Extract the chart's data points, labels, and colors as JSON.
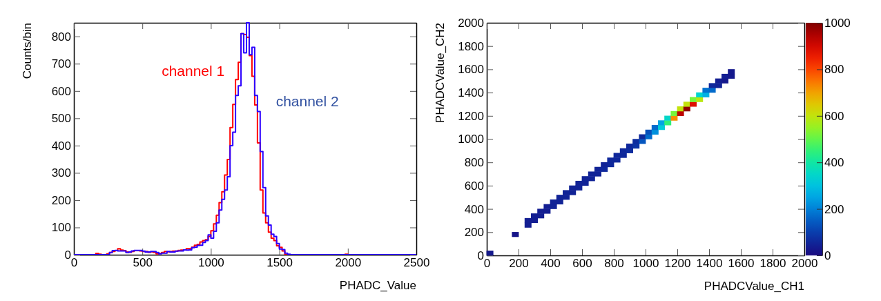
{
  "chart_data": [
    {
      "type": "histogram",
      "xlabel": "PHADC_Value",
      "ylabel": "Counts/bin",
      "legend": false,
      "bins": [
        0,
        20,
        40,
        60,
        80,
        100,
        120,
        140,
        160,
        180,
        200,
        220,
        240,
        260,
        280,
        300,
        320,
        340,
        360,
        380,
        400,
        420,
        440,
        460,
        480,
        500,
        520,
        540,
        560,
        580,
        600,
        620,
        640,
        660,
        680,
        700,
        720,
        740,
        760,
        780,
        800,
        820,
        840,
        860,
        880,
        900,
        920,
        940,
        960,
        980,
        1000,
        1020,
        1040,
        1060,
        1080,
        1100,
        1120,
        1140,
        1160,
        1180,
        1200,
        1220,
        1240,
        1260,
        1280,
        1300,
        1320,
        1340,
        1360,
        1380,
        1400,
        1420,
        1440,
        1460,
        1480,
        1500,
        1520,
        1540,
        1560,
        1580,
        1600,
        1620,
        1640,
        1660,
        1680,
        1700,
        1720,
        1740,
        1760,
        1780,
        1800,
        1820,
        1840,
        1860,
        1880,
        1900,
        1920,
        1940,
        1960,
        1980,
        2000,
        2020,
        2040,
        2060,
        2080,
        2100,
        2120,
        2140,
        2160,
        2180,
        2200,
        2220,
        2240,
        2260,
        2280,
        2300,
        2320,
        2340,
        2360,
        2380,
        2400,
        2420,
        2440,
        2460,
        2480,
        2500
      ],
      "series": [
        {
          "name": "channel 1",
          "color": "#ff0000",
          "values": [
            0,
            0,
            0,
            0,
            0,
            0,
            0,
            0,
            5,
            2,
            0,
            0,
            3,
            8,
            12,
            15,
            22,
            17,
            15,
            10,
            9,
            12,
            15,
            15,
            14,
            12,
            12,
            9,
            11,
            9,
            3,
            5,
            8,
            12,
            11,
            12,
            13,
            13,
            16,
            17,
            18,
            22,
            22,
            28,
            35,
            38,
            47,
            52,
            55,
            67,
            88,
            113,
            145,
            191,
            231,
            292,
            349,
            466,
            551,
            642,
            705,
            810,
            807,
            797,
            730,
            654,
            549,
            410,
            237,
            153,
            117,
            83,
            61,
            52,
            33,
            27,
            14,
            0,
            0,
            0,
            0,
            0,
            0,
            0,
            0,
            0,
            0,
            0,
            0,
            0,
            0,
            0,
            0,
            0,
            0,
            0,
            0,
            0,
            0,
            2,
            0,
            0,
            0,
            0,
            0,
            0,
            0,
            0,
            0,
            0,
            0,
            0,
            0,
            0,
            0,
            0,
            0,
            0,
            0,
            0,
            0,
            0,
            0,
            0,
            0
          ]
        },
        {
          "name": "channel 2",
          "color": "#2b00ff",
          "values": [
            0,
            0,
            0,
            0,
            0,
            0,
            0,
            0,
            0,
            0,
            0,
            0,
            0,
            8,
            15,
            16,
            14,
            14,
            14,
            8,
            10,
            14,
            16,
            16,
            16,
            13,
            10,
            10,
            12,
            12,
            8,
            3,
            6,
            6,
            12,
            10,
            10,
            13,
            14,
            14,
            18,
            17,
            18,
            26,
            28,
            34,
            35,
            45,
            52,
            73,
            61,
            86,
            117,
            164,
            203,
            237,
            286,
            400,
            449,
            584,
            619,
            810,
            740,
            850,
            733,
            760,
            584,
            525,
            378,
            246,
            142,
            109,
            75,
            67,
            41,
            21,
            19,
            6,
            2,
            0,
            0,
            0,
            0,
            0,
            0,
            0,
            0,
            0,
            0,
            0,
            0,
            0,
            0,
            0,
            0,
            0,
            0,
            0,
            0,
            0,
            0,
            0,
            0,
            0,
            0,
            0,
            0,
            0,
            0,
            0,
            0,
            0,
            0,
            0,
            0,
            0,
            0,
            0,
            0,
            0,
            0,
            0,
            0,
            0,
            0
          ]
        }
      ],
      "xlim": [
        0,
        2500
      ],
      "xticks": [
        0,
        500,
        1000,
        1500,
        2000,
        2500
      ],
      "ylim": [
        0,
        850
      ],
      "yticks": [
        0,
        100,
        200,
        300,
        400,
        500,
        600,
        700,
        800
      ]
    },
    {
      "type": "scatter",
      "marker": "square",
      "xlabel": "PHADCValue_CH1",
      "ylabel": "PHADCValue_CH2",
      "x": [
        20,
        180,
        260,
        260,
        300,
        300,
        340,
        340,
        380,
        380,
        420,
        420,
        460,
        460,
        500,
        500,
        540,
        540,
        580,
        580,
        620,
        620,
        660,
        660,
        700,
        700,
        740,
        740,
        780,
        780,
        820,
        820,
        860,
        860,
        900,
        900,
        940,
        940,
        980,
        980,
        1020,
        1020,
        1060,
        1060,
        1100,
        1100,
        1140,
        1140,
        1180,
        1180,
        1220,
        1220,
        1260,
        1260,
        1300,
        1300,
        1340,
        1340,
        1380,
        1380,
        1420,
        1420,
        1460,
        1460,
        1500,
        1500,
        1540,
        1540
      ],
      "values": [
        20,
        180,
        260,
        300,
        300,
        340,
        340,
        380,
        380,
        420,
        420,
        460,
        460,
        500,
        500,
        540,
        540,
        580,
        580,
        620,
        620,
        660,
        660,
        700,
        700,
        740,
        740,
        780,
        780,
        820,
        820,
        860,
        860,
        900,
        900,
        940,
        940,
        980,
        980,
        1020,
        1020,
        1060,
        1060,
        1100,
        1100,
        1140,
        1140,
        1180,
        1180,
        1220,
        1220,
        1260,
        1260,
        1300,
        1300,
        1340,
        1340,
        1380,
        1380,
        1420,
        1420,
        1460,
        1460,
        1500,
        1500,
        1540,
        1540,
        1580
      ],
      "cvalues": [
        30,
        20,
        40,
        40,
        40,
        40,
        40,
        40,
        40,
        40,
        50,
        50,
        50,
        50,
        50,
        50,
        50,
        50,
        50,
        50,
        50,
        50,
        50,
        50,
        50,
        50,
        60,
        50,
        60,
        60,
        60,
        60,
        60,
        60,
        70,
        60,
        80,
        70,
        140,
        60,
        170,
        130,
        220,
        170,
        320,
        250,
        450,
        350,
        720,
        520,
        930,
        600,
        980,
        600,
        880,
        520,
        590,
        340,
        270,
        180,
        170,
        60,
        50,
        40,
        30,
        40,
        30,
        30
      ],
      "xlim": [
        0,
        2000
      ],
      "xticks": [
        0,
        200,
        400,
        600,
        800,
        1000,
        1200,
        1400,
        1600,
        1800,
        2000
      ],
      "ylim": [
        0,
        2000
      ],
      "yticks": [
        0,
        200,
        400,
        600,
        800,
        1000,
        1200,
        1400,
        1600,
        1800,
        2000
      ],
      "clim": [
        0,
        1000
      ],
      "cticks": [
        0,
        200,
        400,
        600,
        800,
        1000
      ]
    }
  ]
}
